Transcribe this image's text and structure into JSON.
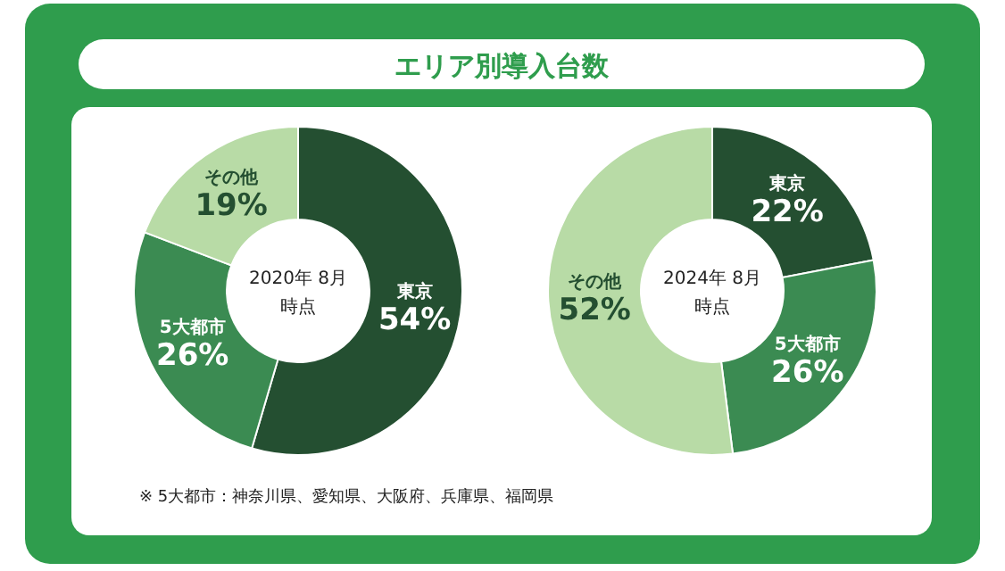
{
  "chart_data": [
    {
      "type": "donut",
      "title": "エリア別導入台数",
      "categories": [
        "東京",
        "5大都市",
        "その他"
      ],
      "values": [
        54,
        26,
        19
      ],
      "colors": [
        "#244f31",
        "#3b8b52",
        "#b8dba6"
      ],
      "value_labels": [
        "54%",
        "26%",
        "19%"
      ],
      "legend": false,
      "annotations": [
        "2020年 8月",
        "時点",
        "※ 5大都市：神奈川県、愛知県、大阪府、兵庫県、福岡県"
      ]
    },
    {
      "type": "donut",
      "categories": [
        "東京",
        "5大都市",
        "その他"
      ],
      "values": [
        22,
        26,
        52
      ],
      "colors": [
        "#244f31",
        "#3b8b52",
        "#b8dba6"
      ],
      "value_labels": [
        "22%",
        "26%",
        "52%"
      ],
      "legend": false,
      "annotations": [
        "2024年 8月",
        "時点"
      ]
    }
  ]
}
